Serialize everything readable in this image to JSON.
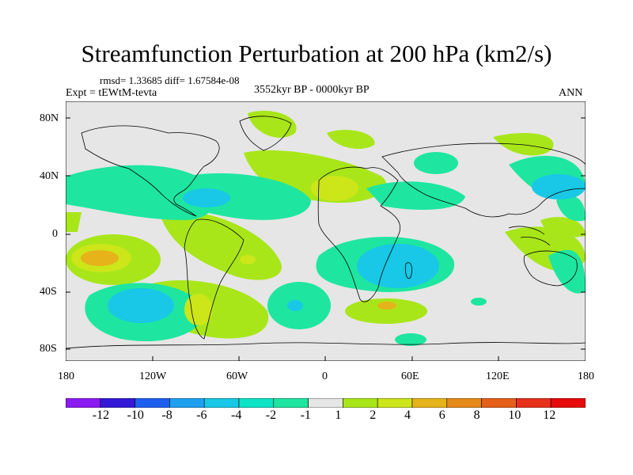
{
  "title": "Streamfunction Perturbation at 200 hPa (km2/s)",
  "stats_line": "rmsd= 1.33685 diff= 1.67584e-08",
  "experiment": "Expt = tEWtM-tevta",
  "period": "3552kyr BP - 0000kyr BP",
  "season": "ANN",
  "y_axis_ticks": [
    "80N",
    "40N",
    "0",
    "40S",
    "80S"
  ],
  "x_axis_ticks": [
    "180",
    "120W",
    "60W",
    "0",
    "60E",
    "120E",
    "180"
  ],
  "colorbar": {
    "labels": [
      "-12",
      "-10",
      "-8",
      "-6",
      "-4",
      "-2",
      "-1",
      "1",
      "2",
      "4",
      "6",
      "8",
      "10",
      "12"
    ],
    "colors": [
      "#8c1af2",
      "#3319d6",
      "#1f5ff0",
      "#1ea0f0",
      "#18c8e6",
      "#0ee3c6",
      "#1ee6a0",
      "#e6e6e6",
      "#a8e61a",
      "#cce61a",
      "#e6b31a",
      "#e68a1a",
      "#e6601a",
      "#e6301a",
      "#e60a0a"
    ]
  },
  "colors": {
    "neutral": "#e6e6e6",
    "pos_1": "#a8e61a",
    "pos_2": "#cce61a",
    "pos_4": "#e6b31a",
    "neg_1": "#1ee6a0",
    "neg_2": "#0ee3c6",
    "neg_4": "#18c8e6"
  }
}
